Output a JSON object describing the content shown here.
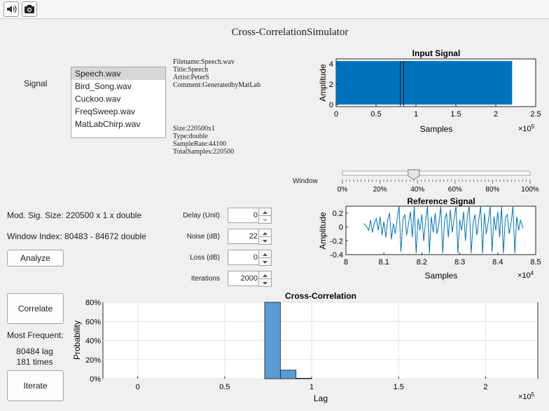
{
  "toolbar": {
    "buttons": [
      {
        "icon": "speaker-icon"
      },
      {
        "icon": "camera-icon"
      }
    ]
  },
  "app": {
    "title": "Cross-CorrelationSimulator"
  },
  "signal_label": "Signal",
  "signal_list": {
    "items": [
      "Speech.wav",
      "Bird_Song.wav",
      "Cuckoo.wav",
      "FreqSweep.wav",
      "MatLabChirp.wav"
    ],
    "selected": "Speech.wav"
  },
  "file_info": {
    "filename": "Filename:Speech.wav",
    "title": "Title:Speech",
    "artist": "Artist:PeterS",
    "comment": "Comment:GeneratedbyMatLab",
    "size": "Size:220500x1",
    "type": "Type:double",
    "sample_rate": "SampleRate:44100",
    "total_samples": "TotalSamples:220500"
  },
  "window_slider": {
    "label": "Window",
    "value_fraction": 0.38,
    "ticks": [
      "0%",
      "20%",
      "40%",
      "60%",
      "80%",
      "100%"
    ]
  },
  "stats": {
    "mod_sig_size": "Mod. Sig. Size: 220500 x 1 x double",
    "window_index": "Window Index: 80483 - 84672 double"
  },
  "buttons": {
    "analyze": "Analyze",
    "correlate": "Correlate",
    "iterate": "Iterate"
  },
  "params": {
    "delay": {
      "label": "Delay (Unit)",
      "value": "0"
    },
    "noise": {
      "label": "Noise (dB)",
      "value": "22"
    },
    "loss": {
      "label": "Loss (dB)",
      "value": "0"
    },
    "iterations": {
      "label": "Iterations",
      "value": "2000"
    }
  },
  "result": {
    "heading": "Most Frequent:",
    "lag": "80484 lag",
    "times": "181 times"
  },
  "colors": {
    "plot_blue": "#0072bd",
    "hist_blue": "#5b9bd5"
  },
  "chart_data": [
    {
      "type": "area",
      "title": "Input Signal",
      "xlabel": "Samples",
      "ylabel": "Amplitude",
      "x_exponent": "×10^5",
      "xlim": [
        0,
        2.5
      ],
      "ylim": [
        -0.2,
        4.5
      ],
      "xticks": [
        "0",
        "0.5",
        "1",
        "1.5",
        "2",
        "2.5"
      ],
      "yticks": [
        "0",
        "2",
        "4"
      ],
      "signal_extent": [
        0,
        2.205
      ],
      "signal_range": [
        0,
        4.3
      ],
      "window_markers": [
        0.80483,
        0.84672
      ],
      "grid": false
    },
    {
      "type": "line",
      "title": "Reference Signal",
      "xlabel": "Samples",
      "ylabel": "Amplitude",
      "x_exponent": "×10^4",
      "xlim": [
        8,
        8.5
      ],
      "ylim": [
        -0.4,
        0.3
      ],
      "xticks": [
        "8",
        "8.1",
        "8.2",
        "8.3",
        "8.4",
        "8.5"
      ],
      "yticks": [
        "0.2",
        "0",
        "-0.2",
        "-0.4"
      ],
      "x": [
        8.048,
        8.055,
        8.06,
        8.065,
        8.07,
        8.075,
        8.08,
        8.085,
        8.09,
        8.095,
        8.1,
        8.105,
        8.11,
        8.115,
        8.12,
        8.125,
        8.13,
        8.135,
        8.14,
        8.145,
        8.15,
        8.155,
        8.16,
        8.165,
        8.17,
        8.175,
        8.18,
        8.185,
        8.19,
        8.195,
        8.2,
        8.205,
        8.21,
        8.215,
        8.22,
        8.225,
        8.23,
        8.235,
        8.24,
        8.245,
        8.25,
        8.255,
        8.26,
        8.265,
        8.27,
        8.275,
        8.28,
        8.285,
        8.29,
        8.295,
        8.3,
        8.305,
        8.31,
        8.315,
        8.32,
        8.325,
        8.33,
        8.335,
        8.34,
        8.345,
        8.35,
        8.355,
        8.36,
        8.365,
        8.37,
        8.375,
        8.38,
        8.385,
        8.39,
        8.395,
        8.4,
        8.405,
        8.41,
        8.415,
        8.42,
        8.425,
        8.43,
        8.435,
        8.44,
        8.445,
        8.45,
        8.455,
        8.46,
        8.467
      ],
      "y": [
        0.05,
        0.0,
        -0.05,
        0.1,
        -0.08,
        0.06,
        0.12,
        -0.05,
        0.15,
        -0.12,
        0.08,
        -0.15,
        0.1,
        0.2,
        -0.18,
        0.05,
        -0.1,
        0.12,
        0.3,
        -0.36,
        0.1,
        0.18,
        -0.12,
        0.05,
        0.22,
        -0.15,
        0.3,
        -0.38,
        0.12,
        -0.05,
        0.18,
        -0.2,
        0.08,
        0.3,
        -0.38,
        0.15,
        -0.08,
        0.2,
        -0.1,
        0.05,
        0.3,
        -0.38,
        0.1,
        0.2,
        -0.15,
        0.25,
        -0.08,
        0.12,
        0.3,
        -0.38,
        0.1,
        -0.05,
        0.22,
        -0.2,
        0.15,
        0.3,
        -0.38,
        0.05,
        0.18,
        -0.12,
        0.1,
        0.3,
        -0.38,
        0.2,
        -0.1,
        0.08,
        0.3,
        -0.36,
        0.15,
        -0.05,
        0.22,
        -0.15,
        0.3,
        -0.38,
        0.12,
        0.18,
        -0.1,
        0.05,
        0.3,
        -0.38,
        0.15,
        -0.05,
        0.1,
        -0.02
      ],
      "grid": false
    },
    {
      "type": "bar",
      "title": "Cross-Correlation",
      "xlabel": "Lag",
      "ylabel": "Probability",
      "x_exponent": "×10^5",
      "xlim": [
        -0.2,
        2.3
      ],
      "ylim": [
        0,
        0.8
      ],
      "xticks": [
        "0",
        "0.5",
        "1",
        "1.5",
        "2"
      ],
      "yticks": [
        "0%",
        "20%",
        "40%",
        "60%",
        "80%"
      ],
      "bin_edges": [
        0.73,
        0.82,
        0.91,
        1.0
      ],
      "values": [
        0.905,
        0.09,
        0.005
      ],
      "grid": true
    }
  ]
}
